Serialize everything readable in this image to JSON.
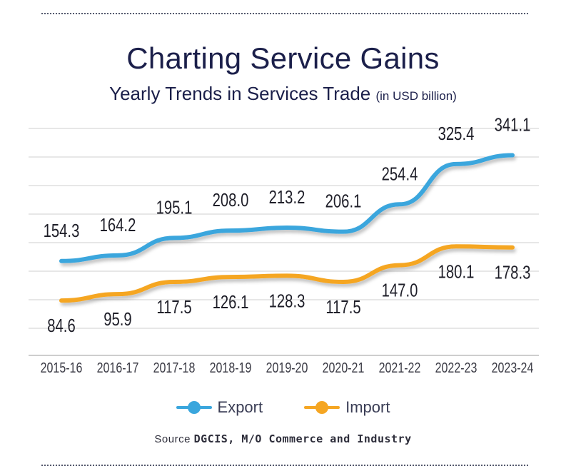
{
  "colors": {
    "export": "#3aa6dd",
    "import": "#f5a623",
    "grid": "#cfcfcf",
    "text": "#1b1f4a"
  },
  "legend": {
    "export": "Export",
    "import": "Import",
    "placement": "bottom"
  },
  "source": {
    "prefix": "Source",
    "text": "DGCIS, M/O Commerce and Industry"
  },
  "chart_data": {
    "type": "line",
    "title": "Charting Service Gains",
    "subtitle": "Yearly Trends in Services Trade",
    "unit_note": "(in USD billion)",
    "categories": [
      "2015-16",
      "2016-17",
      "2017-18",
      "2018-19",
      "2019-20",
      "2020-21",
      "2021-22",
      "2022-23",
      "2023-24"
    ],
    "series": [
      {
        "name": "Export",
        "values": [
          154.3,
          164.2,
          195.1,
          208.0,
          213.2,
          206.1,
          254.4,
          325.4,
          341.1
        ]
      },
      {
        "name": "Import",
        "values": [
          84.6,
          95.9,
          117.5,
          126.1,
          128.3,
          117.5,
          147.0,
          180.1,
          178.3
        ]
      }
    ],
    "labels": {
      "Export": [
        "154.3",
        "164.2",
        "195.1",
        "208.0",
        "213.2",
        "206.1",
        "254.4",
        "325.4",
        "341.1"
      ],
      "Import": [
        "84.6",
        "95.9",
        "117.5",
        "126.1",
        "128.3",
        "117.5",
        "147.0",
        "180.1",
        "178.3"
      ]
    },
    "grid": true
  }
}
